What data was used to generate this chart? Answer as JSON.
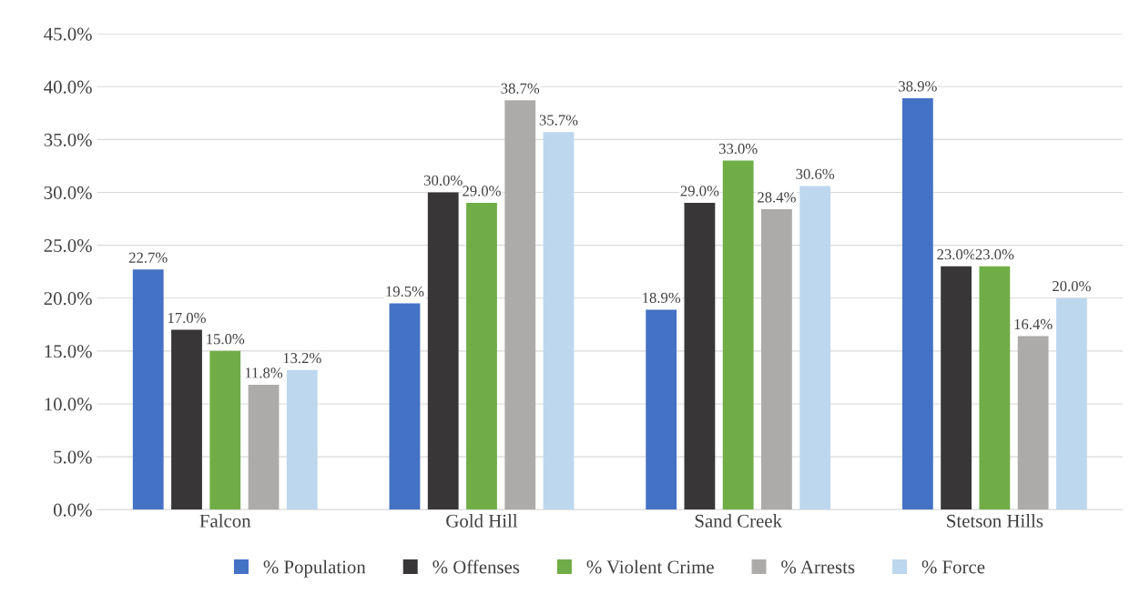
{
  "chart_data": {
    "type": "bar",
    "categories": [
      "Falcon",
      "Gold Hill",
      "Sand Creek",
      "Stetson Hills"
    ],
    "series": [
      {
        "name": "% Population",
        "color": "#4472c4",
        "values": [
          22.7,
          19.5,
          18.9,
          38.9
        ],
        "value_labels": [
          "22.7%",
          "19.5%",
          "18.9%",
          "38.9%"
        ]
      },
      {
        "name": "% Offenses",
        "color": "#383636",
        "values": [
          17.0,
          30.0,
          29.0,
          23.0
        ],
        "value_labels": [
          "17.0%",
          "30.0%",
          "29.0%",
          "23.0%"
        ]
      },
      {
        "name": "% Violent Crime",
        "color": "#70ad47",
        "values": [
          15.0,
          29.0,
          33.0,
          23.0
        ],
        "value_labels": [
          "15.0%",
          "29.0%",
          "33.0%",
          "23.0%"
        ]
      },
      {
        "name": "% Arrests",
        "color": "#adabaa",
        "values": [
          11.8,
          38.7,
          28.4,
          16.4
        ],
        "value_labels": [
          "11.8%",
          "38.7%",
          "28.4%",
          "16.4%"
        ]
      },
      {
        "name": "% Force",
        "color": "#bdd7ee",
        "values": [
          13.2,
          35.7,
          30.6,
          20.0
        ],
        "value_labels": [
          "13.2%",
          "35.7%",
          "30.6%",
          "20.0%"
        ]
      }
    ],
    "ylim": [
      0,
      45
    ],
    "yticks": [
      {
        "value": 0,
        "label": "0.0%"
      },
      {
        "value": 5,
        "label": "5.0%"
      },
      {
        "value": 10,
        "label": "10.0%"
      },
      {
        "value": 15,
        "label": "15.0%"
      },
      {
        "value": 20,
        "label": "20.0%"
      },
      {
        "value": 25,
        "label": "25.0%"
      },
      {
        "value": 30,
        "label": "30.0%"
      },
      {
        "value": 35,
        "label": "35.0%"
      },
      {
        "value": 40,
        "label": "40.0%"
      },
      {
        "value": 45,
        "label": "45.0%"
      }
    ],
    "grid": "y",
    "legend": "bottom"
  }
}
